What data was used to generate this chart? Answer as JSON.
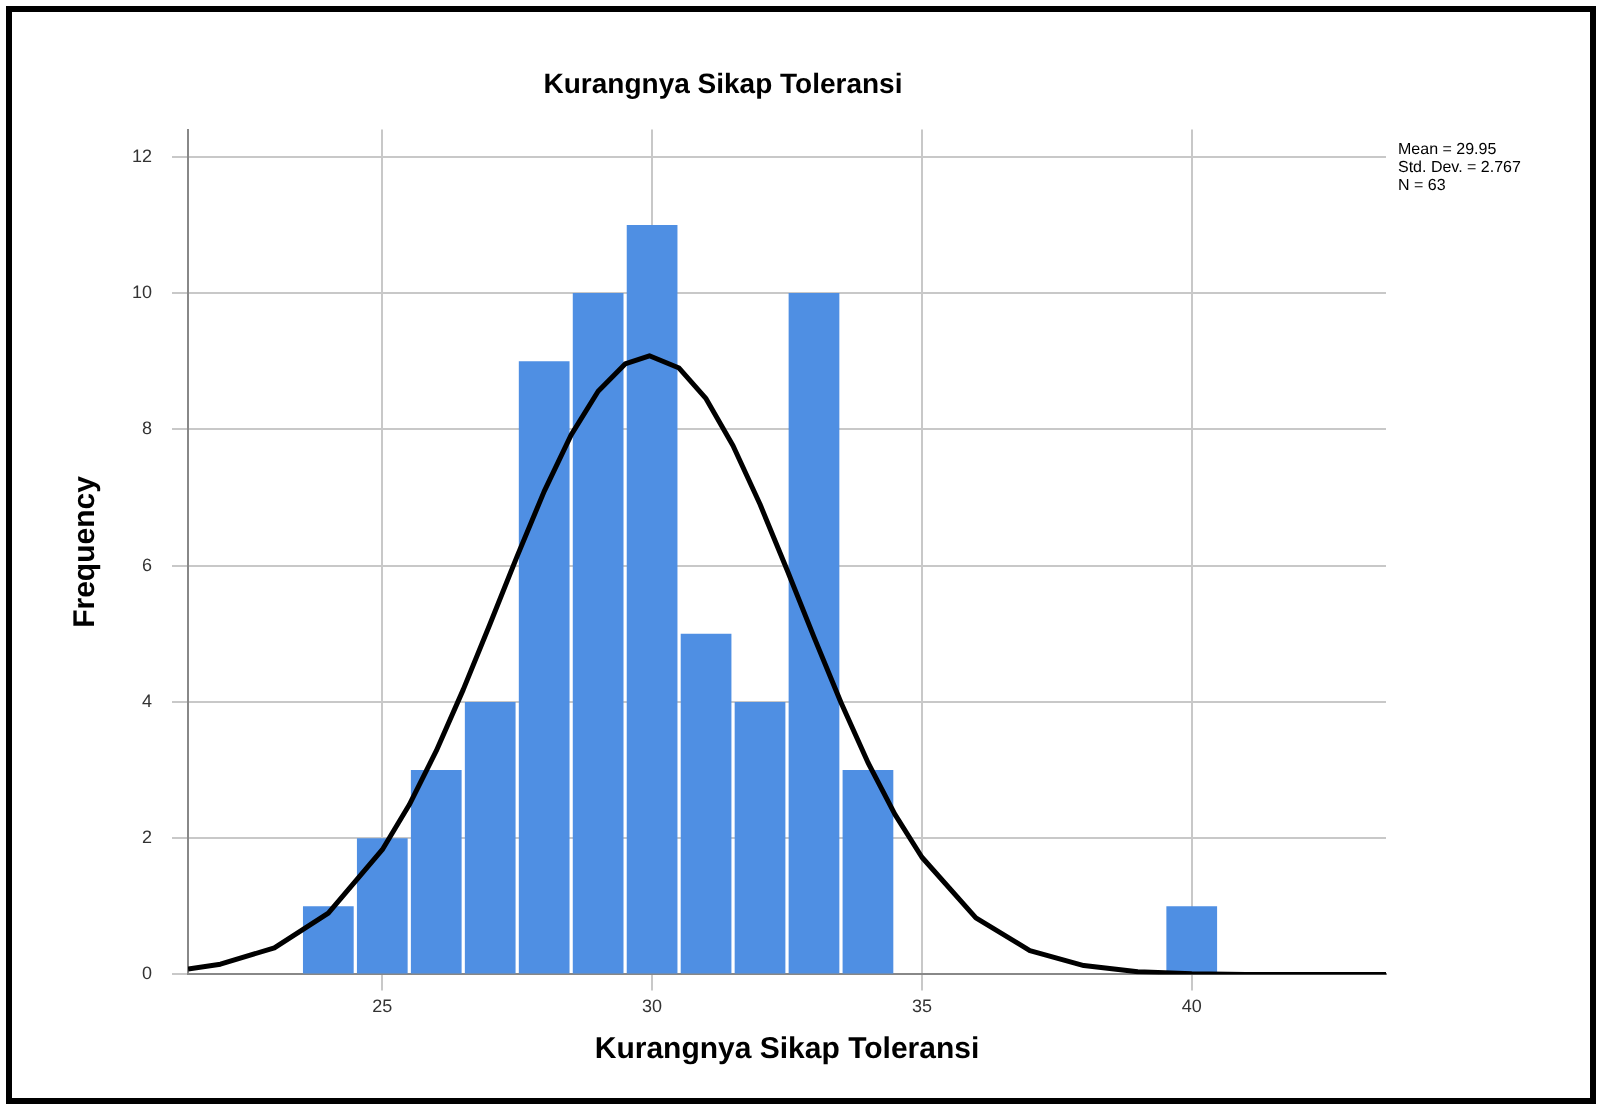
{
  "chart_data": {
    "type": "histogram",
    "title": "Kurangnya Sikap Toleransi",
    "xlabel": "Kurangnya Sikap Toleransi",
    "ylabel": "Frequency",
    "bins": [
      23.5,
      24.5,
      25.5,
      26.5,
      27.5,
      28.5,
      29.5,
      30.5,
      31.5,
      32.5,
      33.5,
      34.5,
      35.5,
      36.5,
      37.5,
      38.5,
      39.5,
      40.5
    ],
    "values": [
      1,
      2,
      3,
      4,
      9,
      10,
      11,
      5,
      4,
      10,
      3,
      0,
      0,
      0,
      0,
      0,
      1
    ],
    "color": "#4f8fe3",
    "series": [
      {
        "type": "line",
        "color": "#000000",
        "marker": "none",
        "x": [
          21.4,
          22,
          23,
          24,
          25,
          25.5,
          26,
          26.5,
          27,
          27.5,
          28,
          28.5,
          29,
          29.5,
          29.95,
          30.5,
          31,
          31.5,
          32,
          32.5,
          33,
          33.5,
          34,
          34.5,
          35,
          36,
          37,
          38,
          39,
          40,
          41,
          42,
          43.6
        ],
        "values": [
          0.08,
          0.15,
          0.39,
          0.9,
          1.83,
          2.49,
          3.28,
          4.18,
          5.15,
          6.14,
          7.09,
          7.92,
          8.56,
          8.96,
          9.08,
          8.9,
          8.45,
          7.76,
          6.9,
          5.94,
          4.95,
          3.99,
          3.11,
          2.35,
          1.72,
          0.83,
          0.35,
          0.13,
          0.04,
          0.01,
          0,
          0,
          0
        ]
      }
    ],
    "xlim": [
      21.4,
      43.6
    ],
    "xticks": [
      25,
      30,
      35,
      40
    ],
    "ylim": [
      0,
      12.4
    ],
    "yticks": [
      0,
      2,
      4,
      6,
      8,
      10,
      12
    ],
    "grid": true,
    "legend": false,
    "annotations": [
      "Mean = 29.95",
      "Std. Dev. = 2.767",
      "N = 63"
    ]
  }
}
